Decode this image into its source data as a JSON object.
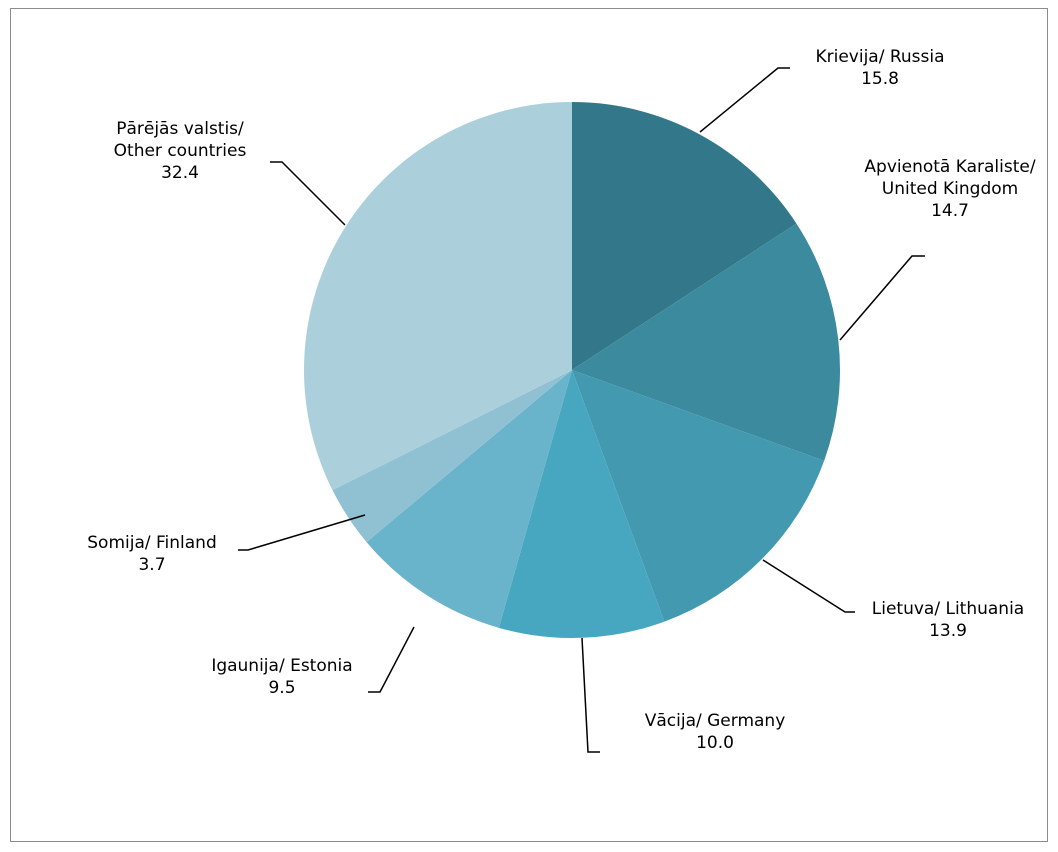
{
  "chart_data": {
    "type": "pie",
    "categories": [
      "Krievija/ Russia",
      "Apvienotā Karaliste/ United Kingdom",
      "Lietuva/ Lithuania",
      "Vācija/ Germany",
      "Igaunija/ Estonia",
      "Somija/ Finland",
      "Pārējās valstis/ Other countries"
    ],
    "values": [
      15.8,
      14.7,
      13.9,
      10.0,
      9.5,
      3.7,
      32.4
    ],
    "value_labels": [
      "15.8",
      "14.7",
      "13.9",
      "10.0",
      "9.5",
      "3.7",
      "32.4"
    ],
    "colors": [
      "#33788a",
      "#3c8a9e",
      "#4299b0",
      "#48a7c0",
      "#69b4cb",
      "#90c1d3",
      "#abd0dc"
    ]
  }
}
